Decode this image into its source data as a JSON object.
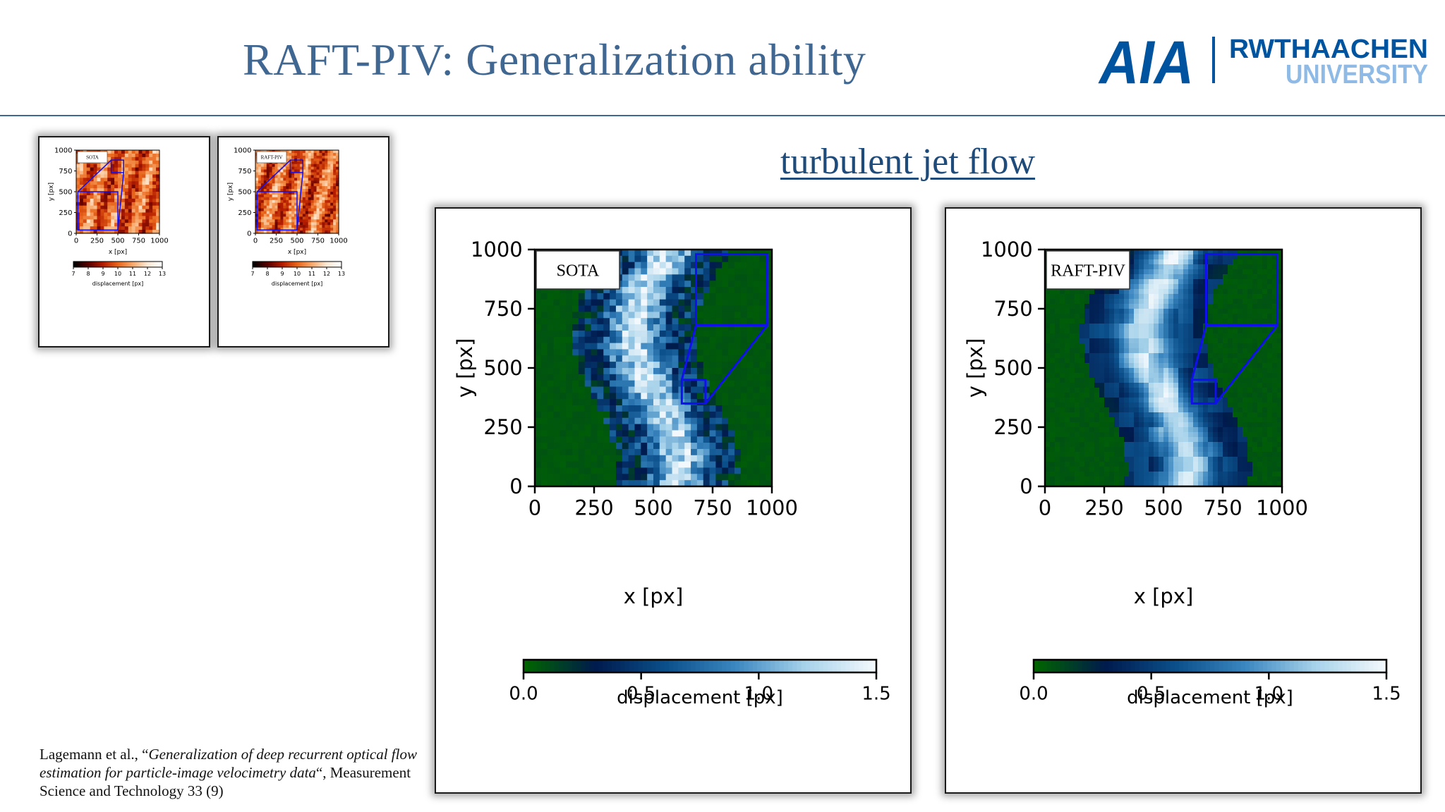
{
  "slide": {
    "title": "RAFT-PIV: Generalization ability",
    "subtitle": "turbulent jet flow",
    "logo": {
      "left_mark": "AIA",
      "right_top": "RWTHAACHEN",
      "right_bottom": "UNIVERSITY",
      "colors": {
        "primary": "#00549f",
        "light": "#8ebae5"
      }
    },
    "citation": {
      "authors": "Lagemann et al., “",
      "title_italic": "Generalization of deep recurrent optical flow estimation for particle-image velocimetry data",
      "rest": "“, Measurement Science and Technology 33 (9)"
    }
  },
  "plots": {
    "small": [
      {
        "label": "SOTA",
        "xlabel": "x [px]",
        "ylabel": "y [px]",
        "xticks": [
          "0",
          "250",
          "500",
          "750",
          "1000"
        ],
        "yticks": [
          "0",
          "250",
          "500",
          "750",
          "1000"
        ],
        "colorbar_label": "displacement [px]",
        "colorbar_ticks": [
          "7",
          "8",
          "9",
          "10",
          "11",
          "12",
          "13"
        ],
        "colormap": [
          "#000000",
          "#5a0000",
          "#b31c00",
          "#e8641a",
          "#f7a86a",
          "#fde8d3",
          "#ffffff"
        ]
      },
      {
        "label": "RAFT-PIV",
        "xlabel": "x [px]",
        "ylabel": "y [px]",
        "xticks": [
          "0",
          "250",
          "500",
          "750",
          "1000"
        ],
        "yticks": [
          "0",
          "250",
          "500",
          "750",
          "1000"
        ],
        "colorbar_label": "displacement [px]",
        "colorbar_ticks": [
          "7",
          "8",
          "9",
          "10",
          "11",
          "12",
          "13"
        ],
        "colormap": [
          "#000000",
          "#5a0000",
          "#b31c00",
          "#e8641a",
          "#f7a86a",
          "#fde8d3",
          "#ffffff"
        ]
      }
    ],
    "large": [
      {
        "label": "SOTA",
        "xlabel": "x [px]",
        "ylabel": "y [px]",
        "xticks": [
          "0",
          "250",
          "500",
          "750",
          "1000"
        ],
        "yticks": [
          "0",
          "250",
          "500",
          "750",
          "1000"
        ],
        "colorbar_label": "displacement [px]",
        "colorbar_ticks": [
          "0.0",
          "0.5",
          "1.0",
          "1.5"
        ],
        "colormap": [
          "#006400",
          "#001a4d",
          "#0b4f8a",
          "#3a86c0",
          "#a6d2ea",
          "#f2f8fc"
        ]
      },
      {
        "label": "RAFT-PIV",
        "xlabel": "x [px]",
        "ylabel": "y [px]",
        "xticks": [
          "0",
          "250",
          "500",
          "750",
          "1000"
        ],
        "yticks": [
          "0",
          "250",
          "500",
          "750",
          "1000"
        ],
        "colorbar_label": "displacement [px]",
        "colorbar_ticks": [
          "0.0",
          "0.5",
          "1.0",
          "1.5"
        ],
        "colormap": [
          "#006400",
          "#001a4d",
          "#0b4f8a",
          "#3a86c0",
          "#a6d2ea",
          "#f2f8fc"
        ]
      }
    ]
  }
}
